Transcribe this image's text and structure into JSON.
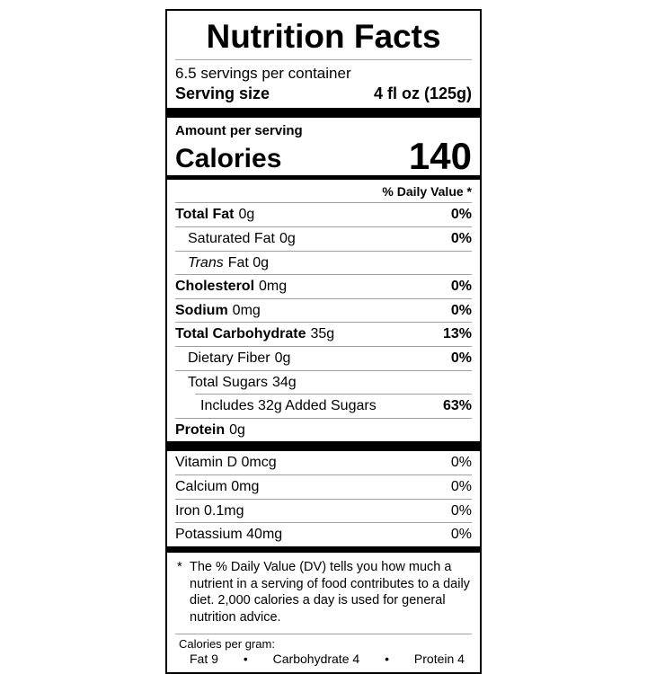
{
  "label": {
    "title": "Nutrition Facts",
    "servings_per_container": "6.5 servings per container",
    "serving_size_label": "Serving size",
    "serving_size_value": "4 fl oz (125g)",
    "amount_per_serving": "Amount per serving",
    "calories_label": "Calories",
    "calories_value": "140",
    "daily_value_header": "% Daily Value *",
    "nutrients": [
      {
        "name": "Total Fat",
        "amount": "0g",
        "dv": "0%"
      },
      {
        "name": "Saturated Fat",
        "amount": "0g",
        "dv": "0%"
      },
      {
        "name": "Trans",
        "amount": "Fat 0g",
        "dv": ""
      },
      {
        "name": "Cholesterol",
        "amount": "0mg",
        "dv": "0%"
      },
      {
        "name": "Sodium",
        "amount": "0mg",
        "dv": "0%"
      },
      {
        "name": "Total Carbohydrate",
        "amount": "35g",
        "dv": "13%"
      },
      {
        "name": "Dietary Fiber",
        "amount": "0g",
        "dv": "0%"
      },
      {
        "name": "Total Sugars",
        "amount": "34g",
        "dv": ""
      },
      {
        "name": "Includes 32g Added Sugars",
        "amount": "",
        "dv": "63%"
      },
      {
        "name": "Protein",
        "amount": "0g",
        "dv": ""
      }
    ],
    "micronutrients": [
      {
        "name": "Vitamin D 0mcg",
        "dv": "0%"
      },
      {
        "name": "Calcium 0mg",
        "dv": "0%"
      },
      {
        "name": "Iron 0.1mg",
        "dv": "0%"
      },
      {
        "name": "Potassium 40mg",
        "dv": "0%"
      }
    ],
    "footnote_marker": "*",
    "footnote": "The % Daily Value (DV) tells you how much a nutrient in a serving of food contributes to a daily diet. 2,000 calories a day is used for general nutrition advice.",
    "calories_per_gram_label": "Calories per gram:",
    "calories_per_gram": {
      "fat": "Fat 9",
      "bullet1": "•",
      "carbohydrate": "Carbohydrate 4",
      "bullet2": "•",
      "protein": "Protein 4"
    }
  }
}
